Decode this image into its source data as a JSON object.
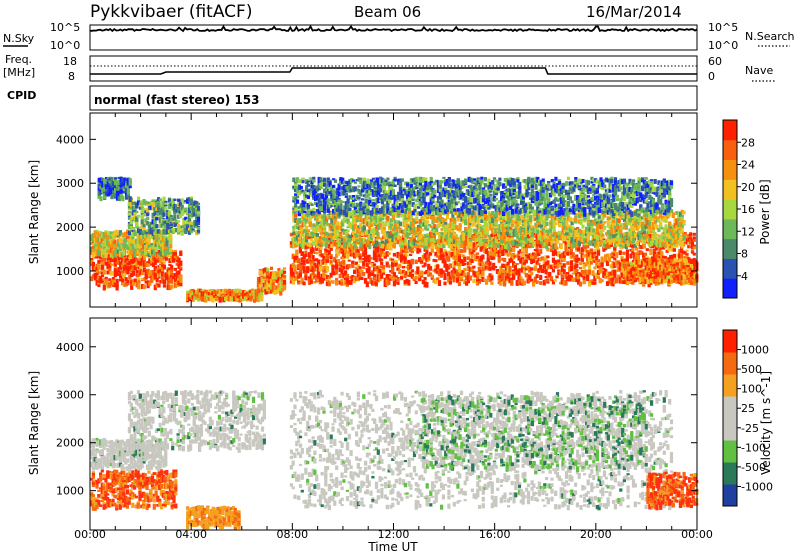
{
  "header": {
    "station": "Pykkvibaer (fitACF)",
    "beam": "Beam 06",
    "date": "16/Mar/2014"
  },
  "top_panels": {
    "nsky_label": "N.Sky",
    "nsky_ticks": [
      "10^5",
      "10^0"
    ],
    "nsearch_ticks": [
      "10^5",
      "10^0"
    ],
    "nsearch_label": "N.Search",
    "freq_label": "Freq.",
    "freq_unit": "[MHz]",
    "freq_ticks": [
      "18",
      "8"
    ],
    "nave_ticks": [
      "60",
      "0"
    ],
    "nave_label": "Nave",
    "cpid_label": "CPID",
    "cpid_text": "normal (fast stereo) 153"
  },
  "chart_data": [
    {
      "type": "heatmap",
      "panel": "power",
      "ylabel": "Slant Range [km]",
      "xlabel": "Time UT",
      "x_ticks": [
        "00:00",
        "04:00",
        "08:00",
        "12:00",
        "16:00",
        "20:00",
        "00:00"
      ],
      "x_range_hours": [
        0,
        24
      ],
      "y_ticks": [
        1000,
        2000,
        3000,
        4000
      ],
      "ylim": [
        180,
        4600
      ],
      "colorbar_label": "Power [dB]",
      "colorbar_ticks": [
        "28",
        "24",
        "20",
        "16",
        "12",
        "8",
        "4"
      ],
      "colorbar_colors": [
        "#1020ff",
        "#2a52b0",
        "#4a8a6a",
        "#6cb85a",
        "#a8d840",
        "#f2c020",
        "#f59010",
        "#f86010",
        "#ff2000"
      ],
      "regions": [
        {
          "t0": 0.0,
          "t1": 3.6,
          "r0": 680,
          "r1": 1500,
          "level": 0.9
        },
        {
          "t0": 0.0,
          "t1": 3.2,
          "r0": 1400,
          "r1": 1950,
          "level": 0.55
        },
        {
          "t0": 1.5,
          "t1": 4.3,
          "r0": 1900,
          "r1": 2700,
          "level": 0.35
        },
        {
          "t0": 0.3,
          "t1": 1.6,
          "r0": 2700,
          "r1": 3150,
          "level": 0.2
        },
        {
          "t0": 3.8,
          "t1": 6.8,
          "r0": 400,
          "r1": 600,
          "level": 0.7
        },
        {
          "t0": 6.6,
          "t1": 7.7,
          "r0": 550,
          "r1": 1100,
          "level": 0.75
        },
        {
          "t0": 7.9,
          "t1": 23.9,
          "r0": 750,
          "r1": 1900,
          "level": 0.88
        },
        {
          "t0": 8.0,
          "t1": 23.5,
          "r0": 1600,
          "r1": 2400,
          "level": 0.55
        },
        {
          "t0": 8.0,
          "t1": 23.0,
          "r0": 2350,
          "r1": 3150,
          "level": 0.25
        },
        {
          "t0": 21.0,
          "t1": 24.0,
          "r0": 800,
          "r1": 1300,
          "level": 0.8
        }
      ]
    },
    {
      "type": "heatmap",
      "panel": "velocity",
      "ylabel": "Slant Range [km]",
      "xlabel": "Time UT",
      "x_ticks": [
        "00:00",
        "04:00",
        "08:00",
        "12:00",
        "16:00",
        "20:00",
        "00:00"
      ],
      "x_range_hours": [
        0,
        24
      ],
      "y_ticks": [
        1000,
        2000,
        3000,
        4000
      ],
      "ylim": [
        180,
        4600
      ],
      "colorbar_label": "Velocity [m s^-1]",
      "colorbar_ticks": [
        "1000",
        "500",
        "100",
        "25",
        "-25",
        "-100",
        "-500",
        "-1000"
      ],
      "colorbar_colors": [
        "#2040a0",
        "#2a7a5a",
        "#60c040",
        "#c8c8c0",
        "#c8c8c0",
        "#f5a020",
        "#f56a10",
        "#ff2000"
      ],
      "regions": [
        {
          "t0": 0.0,
          "t1": 3.4,
          "r0": 700,
          "r1": 1450,
          "kind": "away"
        },
        {
          "t0": 0.0,
          "t1": 3.0,
          "r0": 1500,
          "r1": 2100,
          "kind": "ground"
        },
        {
          "t0": 1.5,
          "t1": 6.9,
          "r0": 1900,
          "r1": 3100,
          "kind": "ground"
        },
        {
          "t0": 3.8,
          "t1": 5.9,
          "r0": 300,
          "r1": 700,
          "kind": "weak"
        },
        {
          "t0": 7.9,
          "t1": 23.0,
          "r0": 700,
          "r1": 3100,
          "kind": "ground"
        },
        {
          "t0": 13.0,
          "t1": 22.0,
          "r0": 1500,
          "r1": 3000,
          "kind": "mixed"
        },
        {
          "t0": 22.0,
          "t1": 24.0,
          "r0": 700,
          "r1": 1400,
          "kind": "away"
        }
      ]
    }
  ]
}
